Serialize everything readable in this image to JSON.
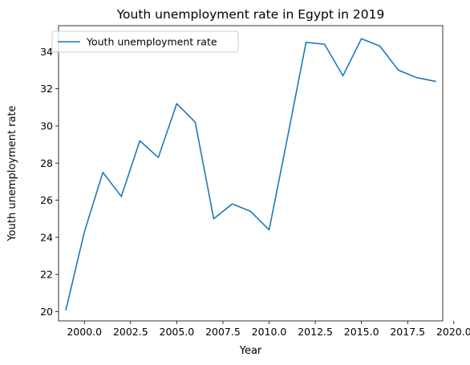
{
  "chart_data": {
    "type": "line",
    "title": "Youth unemployment rate in Egypt in 2019",
    "xlabel": "Year",
    "ylabel": "Youth unemployment rate",
    "xlim": [
      1998.6,
      2019.4
    ],
    "ylim": [
      19.5,
      35.4
    ],
    "xticks": [
      2000.0,
      2002.5,
      2005.0,
      2007.5,
      2010.0,
      2012.5,
      2015.0,
      2017.5,
      2020.0
    ],
    "xtick_labels": [
      "2000.0",
      "2002.5",
      "2005.0",
      "2007.5",
      "2010.0",
      "2012.5",
      "2015.0",
      "2017.5",
      "2020.0"
    ],
    "yticks": [
      20,
      22,
      24,
      26,
      28,
      30,
      32,
      34
    ],
    "ytick_labels": [
      "20",
      "22",
      "24",
      "26",
      "28",
      "30",
      "32",
      "34"
    ],
    "grid": false,
    "legend_position": "top-left",
    "series": [
      {
        "name": "Youth unemployment rate",
        "color": "#1f77b4",
        "x": [
          1999,
          2000,
          2001,
          2002,
          2003,
          2004,
          2005,
          2006,
          2007,
          2008,
          2009,
          2010,
          2011,
          2012,
          2013,
          2014,
          2015,
          2016,
          2017,
          2018,
          2019
        ],
        "y": [
          20.1,
          24.3,
          27.5,
          26.2,
          29.2,
          28.3,
          31.2,
          30.2,
          25.0,
          25.8,
          25.4,
          24.4,
          29.4,
          34.5,
          34.4,
          32.7,
          34.7,
          34.3,
          33.0,
          32.6,
          32.4
        ]
      }
    ]
  }
}
